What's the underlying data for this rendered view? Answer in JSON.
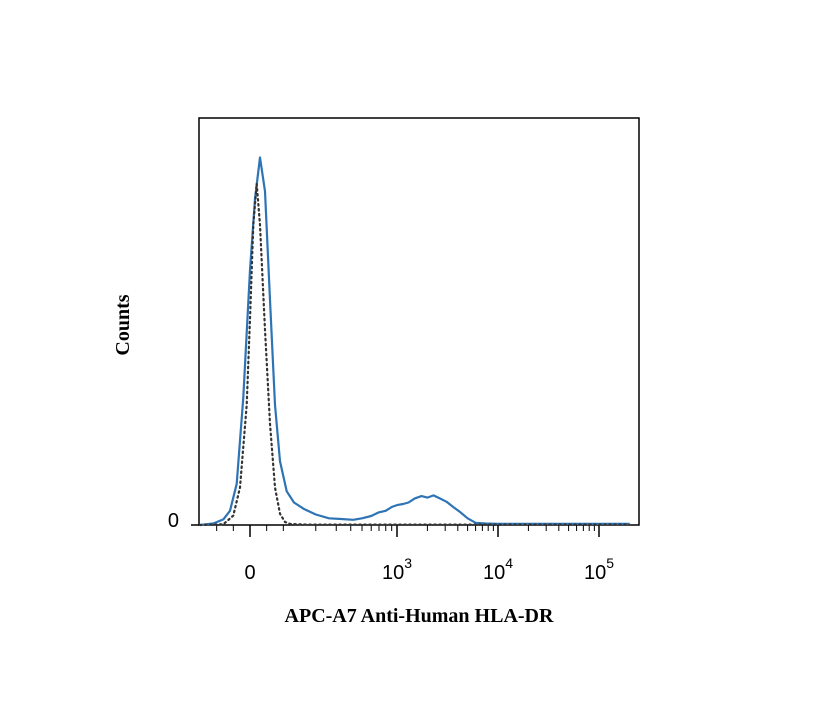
{
  "chart_data": {
    "type": "line",
    "title": "",
    "xlabel": "APC-A7 Anti-Human HLA-DR",
    "ylabel": "Counts",
    "x_scale": "biexponential",
    "xlim": [
      -150,
      200000
    ],
    "ylim": [
      0,
      100
    ],
    "x_ticks": [
      {
        "base": "0",
        "exp": "",
        "value": 0
      },
      {
        "base": "10",
        "exp": "3",
        "value": 1000
      },
      {
        "base": "10",
        "exp": "4",
        "value": 10000
      },
      {
        "base": "10",
        "exp": "5",
        "value": 100000
      }
    ],
    "y_ticks": [
      {
        "label": "0",
        "value": 0
      }
    ],
    "grid": false,
    "legend": "none",
    "series": [
      {
        "style": "solid",
        "color": "#2e74b5",
        "x": [
          -150,
          -110,
          -80,
          -60,
          -40,
          -20,
          0,
          15,
          30,
          45,
          60,
          75,
          90,
          110,
          130,
          160,
          200,
          260,
          330,
          420,
          500,
          600,
          700,
          800,
          900,
          1000,
          1150,
          1300,
          1500,
          1750,
          2000,
          2300,
          2700,
          3100,
          3600,
          4200,
          5000,
          6000,
          7500,
          10000,
          20000,
          50000,
          100000,
          200000
        ],
        "y": [
          0,
          0.4,
          1.5,
          3.8,
          11,
          34,
          68,
          87,
          98,
          89,
          60,
          32,
          17,
          9,
          6,
          4.2,
          2.8,
          1.8,
          1.6,
          1.4,
          1.8,
          2.4,
          3.4,
          3.8,
          4.8,
          5.3,
          5.6,
          6.0,
          7.1,
          7.7,
          7.3,
          7.9,
          7.0,
          6.2,
          4.8,
          3.5,
          1.8,
          0.6,
          0.4,
          0.3,
          0.3,
          0.3,
          0.3,
          0.3
        ]
      },
      {
        "style": "dotted",
        "color": "#333333",
        "x": [
          -150,
          -80,
          -50,
          -30,
          -10,
          0,
          10,
          20,
          30,
          45,
          60,
          75,
          90,
          105,
          120,
          140,
          170,
          220,
          1000,
          200000
        ],
        "y": [
          0,
          0.2,
          2.5,
          10,
          32,
          55,
          80,
          91,
          80,
          52,
          27,
          10,
          3,
          0.8,
          0.3,
          0.2,
          0.1,
          0.1,
          0.1,
          0.1
        ]
      }
    ]
  }
}
